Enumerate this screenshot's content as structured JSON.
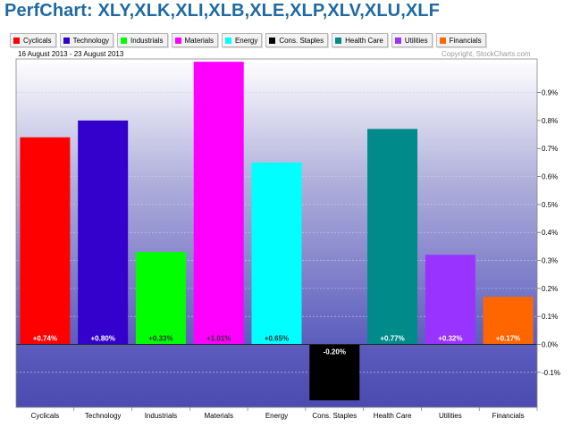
{
  "page": {
    "title": "PerfChart: XLY,XLK,XLI,XLB,XLE,XLP,XLV,XLU,XLF",
    "date_range": "16 August 2013 - 23 August 2013",
    "copyright": "Copyright, StockCharts.com"
  },
  "legend": [
    {
      "label": "Cyclicals",
      "color": "#ff0000"
    },
    {
      "label": "Technology",
      "color": "#3300cc"
    },
    {
      "label": "Industrials",
      "color": "#00ff00"
    },
    {
      "label": "Materials",
      "color": "#ff00ff"
    },
    {
      "label": "Energy",
      "color": "#00ffff"
    },
    {
      "label": "Cons. Staples",
      "color": "#000000"
    },
    {
      "label": "Health Care",
      "color": "#008b8b"
    },
    {
      "label": "Utilities",
      "color": "#9933ff"
    },
    {
      "label": "Financials",
      "color": "#ff6600"
    }
  ],
  "chart_data": {
    "type": "bar",
    "categories": [
      "Cyclicals",
      "Technology",
      "Industrials",
      "Materials",
      "Energy",
      "Cons. Staples",
      "Health Care",
      "Utilities",
      "Financials"
    ],
    "values": [
      0.74,
      0.8,
      0.33,
      1.01,
      0.65,
      -0.2,
      0.77,
      0.32,
      0.17
    ],
    "data_labels": [
      "+0.74%",
      "+0.80%",
      "+0.33%",
      "+1.01%",
      "+0.65%",
      "-0.20%",
      "+0.77%",
      "+0.32%",
      "+0.17%"
    ],
    "colors": [
      "#ff0000",
      "#3300cc",
      "#00ff00",
      "#ff00ff",
      "#00ffff",
      "#000000",
      "#008b8b",
      "#9933ff",
      "#ff6600"
    ],
    "label_colors": [
      "#ffffff",
      "#ffffff",
      "#333333",
      "#333333",
      "#333333",
      "#ffffff",
      "#ffffff",
      "#ffffff",
      "#ffffff"
    ],
    "y_ticks": [
      {
        "value": 0.9,
        "label": "0.9%"
      },
      {
        "value": 0.8,
        "label": "0.8%"
      },
      {
        "value": 0.7,
        "label": "0.7%"
      },
      {
        "value": 0.6,
        "label": "0.6%"
      },
      {
        "value": 0.5,
        "label": "0.5%"
      },
      {
        "value": 0.4,
        "label": "0.4%"
      },
      {
        "value": 0.3,
        "label": "0.3%"
      },
      {
        "value": 0.2,
        "label": "0.2%"
      },
      {
        "value": 0.1,
        "label": "0.1%"
      },
      {
        "value": 0.0,
        "label": "0.0%"
      },
      {
        "value": -0.1,
        "label": "-0.1%"
      }
    ],
    "ylim": [
      -0.225,
      1.02
    ],
    "grid": true,
    "y_axis_position": "right",
    "background_gradient": [
      "#ffffff",
      "#b0b0dc",
      "#5c5cbd",
      "#4a4ab0"
    ]
  }
}
